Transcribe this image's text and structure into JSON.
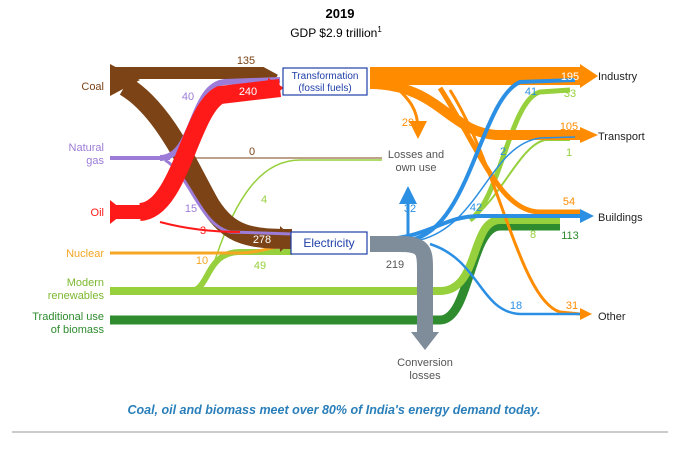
{
  "header": {
    "year": "2019",
    "gdp": "GDP $2.9 trillion",
    "gdp_footnote": "1"
  },
  "sources": {
    "coal": "Coal",
    "natural_gas_1": "Natural",
    "natural_gas_2": "gas",
    "oil": "Oil",
    "nuclear": "Nuclear",
    "modern_renewables_1": "Modern",
    "modern_renewables_2": "renewables",
    "traditional_biomass_1": "Traditional use",
    "traditional_biomass_2": "of biomass"
  },
  "nodes": {
    "transformation_1": "Transformation",
    "transformation_2": "(fossil fuels)",
    "electricity": "Electricity",
    "losses_1": "Losses and",
    "losses_2": "own use",
    "conversion_1": "Conversion",
    "conversion_2": "losses"
  },
  "sinks": {
    "industry": "Industry",
    "transport": "Transport",
    "buildings": "Buildings",
    "other": "Other"
  },
  "flow_values": {
    "coal_transformation": "135",
    "oil_transformation": "240",
    "gas_transformation": "40",
    "gas_losses": "0",
    "gas_electricity": "15",
    "oil_electricity": "3",
    "coal_electricity": "278",
    "renewables_losses": "4",
    "nuclear_electricity": "10",
    "renewables_electricity": "49",
    "transformation_losses": "29",
    "electricity_losses": "32",
    "conversion_losses": "219",
    "industry_fossil": "195",
    "industry_renew": "33",
    "industry_elec": "41",
    "transport_fossil": "105",
    "transport_renew": "1",
    "transport_elec": "2",
    "buildings_fossil": "54",
    "buildings_elec": "42",
    "buildings_renew": "8",
    "buildings_biomass": "113",
    "other_elec": "18",
    "other_fossil": "31"
  },
  "caption": "Coal, oil and biomass meet over 80% of India's energy demand today.",
  "colors": {
    "coal": "#7b4316",
    "gas": "#9c7cd6",
    "oil": "#ff1a1a",
    "nuclear": "#f5a623",
    "renewables": "#96d03c",
    "biomass": "#2e8b2e",
    "fossil_out": "#ff8c00",
    "electricity": "#2b8fe3",
    "losses": "#7f8c99",
    "box_border": "#1f3fa8"
  }
}
